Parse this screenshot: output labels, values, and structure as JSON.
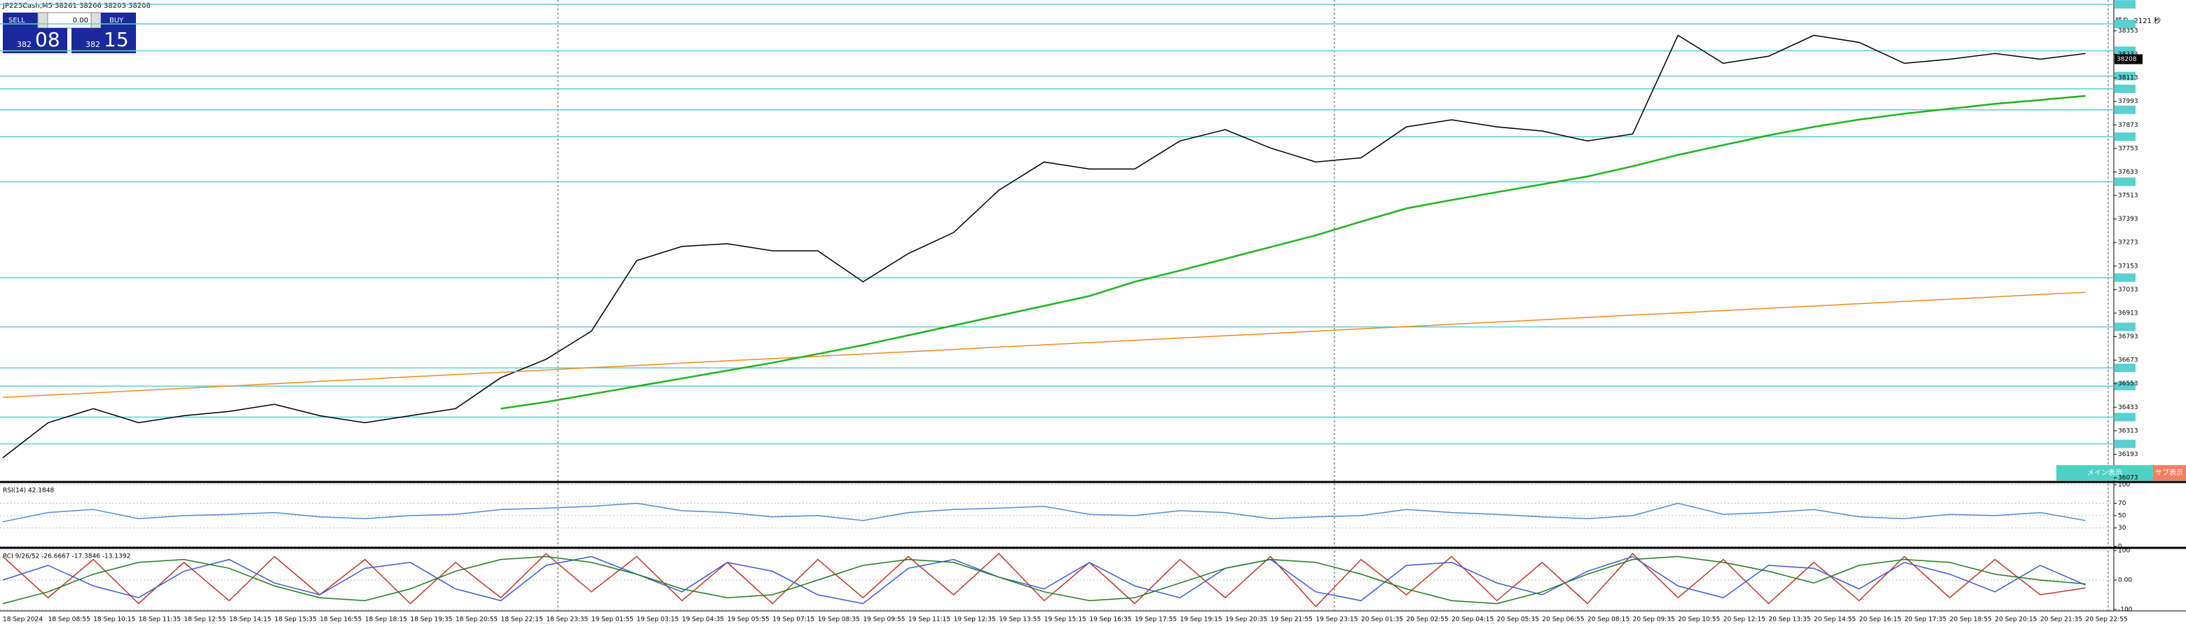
{
  "header": {
    "symbol_line": "JP225Cash,M5 38261 38266 38203 38208",
    "countdown": "残り :2121 秒"
  },
  "trade_panel": {
    "sell": "SELL",
    "buy": "BUY",
    "lot": "0.00",
    "bid_small": "382",
    "bid_big": "08",
    "ask_small": "382",
    "ask_big": "15"
  },
  "buttons": {
    "main": "メイン表示",
    "sub": "サブ表示"
  },
  "chart_data": [
    {
      "type": "line",
      "categories": [
        "18 Sep 2024",
        "18 Sep 08:55",
        "18 Sep 10:15",
        "18 Sep 11:35",
        "18 Sep 12:55",
        "18 Sep 14:15",
        "18 Sep 15:35",
        "18 Sep 16:55",
        "18 Sep 18:15",
        "18 Sep 19:35",
        "18 Sep 20:55",
        "18 Sep 22:15",
        "18 Sep 23:35",
        "19 Sep 01:55",
        "19 Sep 03:15",
        "19 Sep 04:35",
        "19 Sep 05:55",
        "19 Sep 07:15",
        "19 Sep 08:35",
        "19 Sep 09:55",
        "19 Sep 11:15",
        "19 Sep 12:35",
        "19 Sep 13:55",
        "19 Sep 15:15",
        "19 Sep 16:35",
        "19 Sep 17:55",
        "19 Sep 19:15",
        "19 Sep 20:35",
        "19 Sep 21:55",
        "19 Sep 23:15",
        "20 Sep 01:35",
        "20 Sep 02:55",
        "20 Sep 04:15",
        "20 Sep 05:35",
        "20 Sep 06:55",
        "20 Sep 08:15",
        "20 Sep 09:35",
        "20 Sep 10:55",
        "20 Sep 12:15",
        "20 Sep 13:35",
        "20 Sep 14:55",
        "20 Sep 16:15",
        "20 Sep 17:35",
        "20 Sep 18:55",
        "20 Sep 20:15",
        "20 Sep 21:35",
        "20 Sep 22:55"
      ],
      "series": [
        {
          "color": "#000000",
          "values": [
            36175,
            36354,
            36426,
            36354,
            36390,
            36412,
            36448,
            36390,
            36354,
            36390,
            36426,
            36584,
            36678,
            36821,
            37181,
            37253,
            37267,
            37231,
            37231,
            37073,
            37217,
            37324,
            37540,
            37684,
            37648,
            37648,
            37791,
            37849,
            37755,
            37684,
            37705,
            37863,
            37899,
            37863,
            37842,
            37791,
            37827,
            38330,
            38187,
            38223,
            38330,
            38294,
            38187,
            38208,
            38237,
            38208,
            38237
          ]
        },
        {
          "color": "#f08a1c",
          "values": [
            36483,
            36495,
            36506,
            36518,
            36530,
            36541,
            36553,
            36565,
            36576,
            36588,
            36600,
            36611,
            36623,
            36635,
            36646,
            36658,
            36670,
            36681,
            36693,
            36705,
            36716,
            36728,
            36740,
            36751,
            36763,
            36774,
            36786,
            36798,
            36809,
            36821,
            36833,
            36844,
            36856,
            36868,
            36879,
            36891,
            36903,
            36914,
            36926,
            36938,
            36949,
            36961,
            36973,
            36984,
            36996,
            37008,
            37019
          ]
        },
        {
          "color": "#1fb31f",
          "values": [
            null,
            null,
            null,
            null,
            null,
            null,
            null,
            null,
            null,
            null,
            null,
            36426,
            36460,
            36500,
            36540,
            36580,
            36620,
            36660,
            36705,
            36750,
            36800,
            36850,
            36900,
            36950,
            37000,
            37073,
            37130,
            37190,
            37250,
            37310,
            37380,
            37447,
            37490,
            37530,
            37570,
            37610,
            37662,
            37720,
            37770,
            37820,
            37863,
            37900,
            37930,
            37955,
            37980,
            38000,
            38021
          ]
        }
      ],
      "ylim": [
        36059,
        38510
      ],
      "yticks": [
        36073,
        36193,
        36313,
        36433,
        36553,
        36673,
        36793,
        36913,
        37033,
        37153,
        37273,
        37393,
        37513,
        37633,
        37753,
        37873,
        37993,
        38113,
        38233,
        38353
      ],
      "levels": [
        38488,
        38388,
        38251,
        38122,
        38057,
        37950,
        37813,
        37583,
        37094,
        36843,
        36634,
        36541,
        36383,
        36246
      ],
      "level_color": "#5ad0d0",
      "current_price": 38208
    },
    {
      "type": "line",
      "title": "RSI(14) 42.1848",
      "ylim": [
        0,
        100
      ],
      "yticks": [
        0,
        30,
        50,
        70,
        100
      ],
      "series": [
        {
          "color": "#4a90d9",
          "values": [
            40,
            55,
            60,
            45,
            50,
            52,
            55,
            48,
            45,
            50,
            52,
            60,
            62,
            65,
            70,
            58,
            55,
            48,
            50,
            42,
            55,
            60,
            62,
            65,
            52,
            50,
            58,
            55,
            45,
            48,
            50,
            60,
            55,
            52,
            48,
            45,
            50,
            70,
            52,
            55,
            60,
            48,
            45,
            52,
            50,
            55,
            42
          ]
        }
      ]
    },
    {
      "type": "line",
      "title": "RCI 9/26/52 -26.6667 -17.3846 -13.1392",
      "ylim": [
        -100,
        100
      ],
      "yticks": [
        -100,
        {
          "value": 0,
          "label": "0.00"
        },
        100
      ],
      "series": [
        {
          "color": "#c0392b",
          "values": [
            80,
            -60,
            70,
            -80,
            60,
            -70,
            80,
            -50,
            70,
            -80,
            60,
            -60,
            90,
            -40,
            80,
            -70,
            60,
            -80,
            70,
            -60,
            80,
            -50,
            90,
            -70,
            60,
            -80,
            70,
            -60,
            80,
            -90,
            70,
            -50,
            80,
            -70,
            60,
            -80,
            90,
            -60,
            70,
            -80,
            60,
            -70,
            80,
            -60,
            70,
            -50,
            -27
          ]
        },
        {
          "color": "#3b5bdb",
          "values": [
            0,
            50,
            -20,
            -60,
            30,
            70,
            -10,
            -50,
            40,
            60,
            -30,
            -70,
            50,
            80,
            20,
            -40,
            60,
            30,
            -50,
            -80,
            40,
            70,
            10,
            -30,
            60,
            -20,
            -60,
            40,
            70,
            -40,
            -70,
            50,
            60,
            -10,
            -50,
            30,
            80,
            -20,
            -60,
            50,
            40,
            -30,
            60,
            20,
            -40,
            50,
            -17
          ]
        },
        {
          "color": "#1e7d1e",
          "values": [
            -80,
            -40,
            20,
            60,
            70,
            40,
            -20,
            -60,
            -70,
            -30,
            30,
            70,
            80,
            60,
            20,
            -30,
            -60,
            -50,
            0,
            50,
            70,
            60,
            10,
            -40,
            -70,
            -60,
            -10,
            40,
            70,
            60,
            20,
            -30,
            -70,
            -80,
            -40,
            20,
            70,
            80,
            60,
            30,
            -10,
            50,
            70,
            60,
            20,
            0,
            -13
          ]
        }
      ]
    }
  ]
}
